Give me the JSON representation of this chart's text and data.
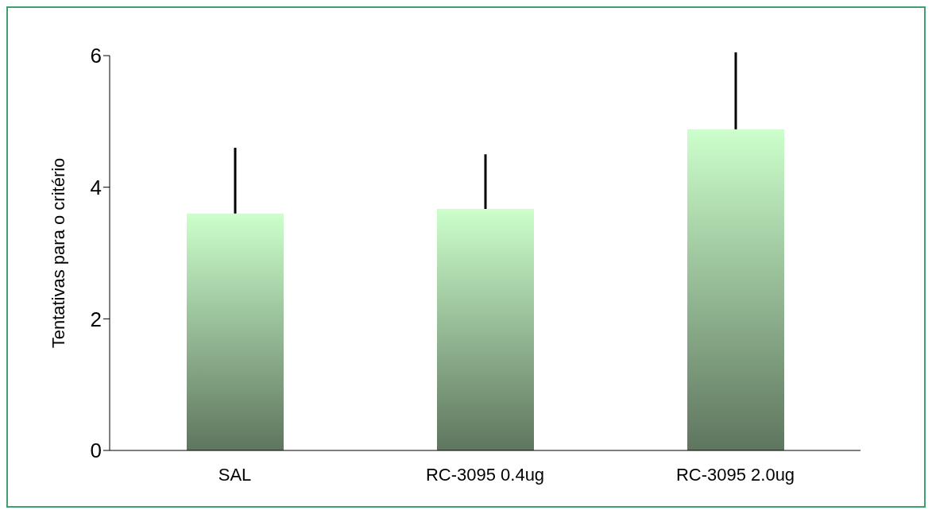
{
  "chart_data": {
    "type": "bar",
    "ylabel": "Tentativas para o critério",
    "categories": [
      "SAL",
      "RC-3095 0.4ug",
      "RC-3095 2.0ug"
    ],
    "values": [
      3.6,
      3.67,
      4.88
    ],
    "errors": [
      [
        3.6,
        4.6
      ],
      [
        3.67,
        4.5
      ],
      [
        4.88,
        6.05
      ]
    ],
    "color": "#ccffcc",
    "ylim": [
      0,
      6
    ],
    "yticks": [
      0,
      2,
      4,
      6
    ],
    "grid": false,
    "legend": false
  }
}
